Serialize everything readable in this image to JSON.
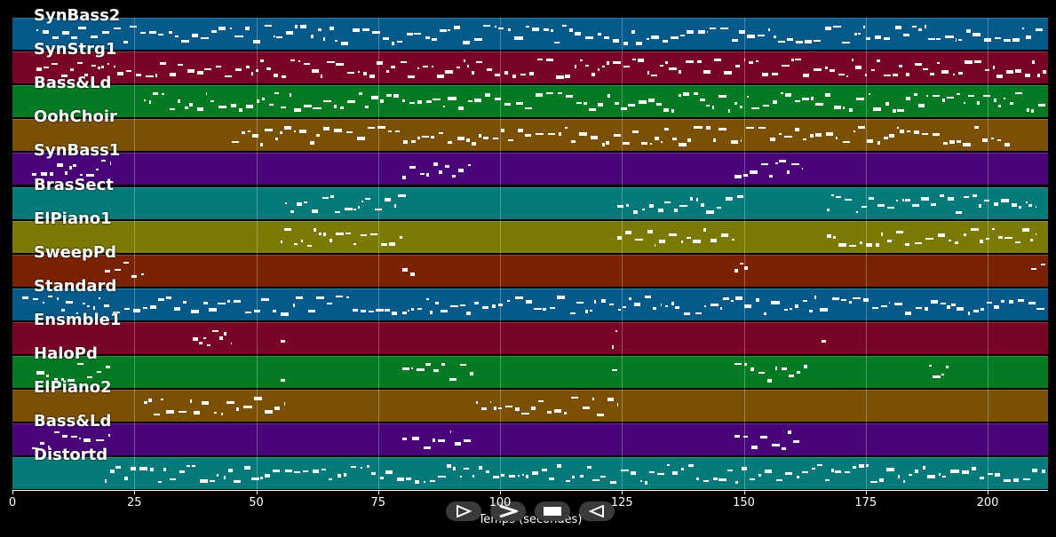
{
  "chart_data": {
    "type": "piano-roll",
    "xlabel": "Temps (secondes)",
    "x_ticks": [
      0,
      25,
      50,
      75,
      100,
      125,
      150,
      175,
      200
    ],
    "xlim": [
      0,
      212
    ],
    "grid": true,
    "tracks": [
      {
        "name": "SynBass2",
        "color": "#045a8a",
        "segments": [
          [
            5,
            212
          ]
        ]
      },
      {
        "name": "SynStrg1",
        "color": "#7a0426",
        "segments": [
          [
            5,
            212
          ]
        ]
      },
      {
        "name": "Bass&Ld",
        "color": "#047a22",
        "segments": [
          [
            27,
            212
          ]
        ]
      },
      {
        "name": "OohChoir",
        "color": "#7a5004",
        "segments": [
          [
            45,
            205
          ]
        ]
      },
      {
        "name": "SynBass1",
        "color": "#4a047a",
        "segments": [
          [
            4,
            20
          ],
          [
            80,
            94
          ],
          [
            148,
            162
          ]
        ]
      },
      {
        "name": "BrasSect",
        "color": "#047a7a",
        "segments": [
          [
            56,
            81
          ],
          [
            124,
            150
          ],
          [
            167,
            210
          ]
        ]
      },
      {
        "name": "ElPiano1",
        "color": "#7a7a04",
        "segments": [
          [
            55,
            80
          ],
          [
            124,
            148
          ],
          [
            167,
            210
          ]
        ]
      },
      {
        "name": "SweepPd",
        "color": "#7a2204",
        "segments": [
          [
            19,
            27
          ],
          [
            80,
            83
          ],
          [
            148,
            151
          ],
          [
            209,
            212
          ]
        ]
      },
      {
        "name": "Standard",
        "color": "#045a8a",
        "segments": [
          [
            2,
            212
          ]
        ]
      },
      {
        "name": "Ensmble1",
        "color": "#7a0426",
        "segments": [
          [
            37,
            45
          ],
          [
            55,
            56
          ],
          [
            123,
            124
          ],
          [
            166,
            167
          ]
        ]
      },
      {
        "name": "HaloPd",
        "color": "#047a22",
        "segments": [
          [
            5,
            20
          ],
          [
            55,
            56
          ],
          [
            80,
            95
          ],
          [
            123,
            124
          ],
          [
            148,
            163
          ],
          [
            188,
            192
          ]
        ]
      },
      {
        "name": "ElPiano2",
        "color": "#7a5004",
        "segments": [
          [
            27,
            56
          ],
          [
            95,
            124
          ]
        ]
      },
      {
        "name": "Bass&Ld",
        "color": "#4a047a",
        "segments": [
          [
            4,
            20
          ],
          [
            80,
            94
          ],
          [
            148,
            162
          ]
        ]
      },
      {
        "name": "Distortd",
        "color": "#047a7a",
        "segments": [
          [
            19,
            212
          ]
        ]
      }
    ]
  },
  "controls": [
    {
      "name": "play-icon"
    },
    {
      "name": "fast-forward-icon"
    },
    {
      "name": "stop-icon"
    },
    {
      "name": "rewind-icon"
    }
  ]
}
